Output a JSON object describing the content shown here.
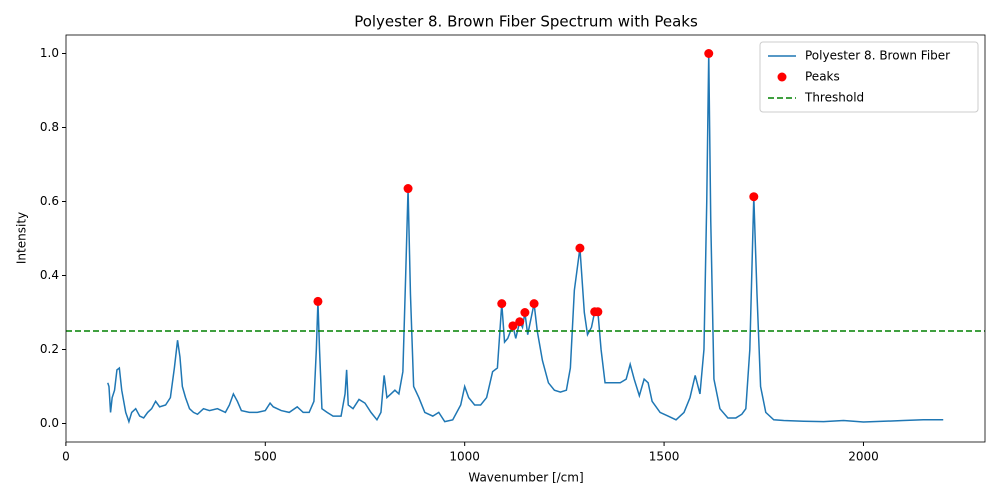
{
  "chart_data": {
    "type": "line",
    "title": "Polyester 8. Brown Fiber Spectrum with Peaks",
    "xlabel": "Wavenumber [/cm]",
    "ylabel": "Intensity",
    "xlim": [
      0.25,
      2304.75
    ],
    "ylim": [
      -0.05,
      1.05
    ],
    "xticks": [
      0,
      500,
      1000,
      1500,
      2000
    ],
    "yticks": [
      {
        "value": 0,
        "label": "0.0"
      },
      0.2,
      0.4,
      0.6,
      0.8,
      {
        "value": 1,
        "label": "1.0"
      }
    ],
    "grid": false,
    "legend": "upper right",
    "series": [
      {
        "name": "Polyester 8. Brown Fiber",
        "type": "line",
        "color": "#1f77b4",
        "x": [
          105,
          108,
          112,
          116,
          122,
          128,
          134,
          140,
          150,
          158,
          165,
          175,
          185,
          195,
          205,
          215,
          225,
          235,
          250,
          262,
          272,
          280,
          286,
          292,
          300,
          310,
          320,
          330,
          345,
          360,
          380,
          400,
          410,
          420,
          430,
          440,
          460,
          480,
          500,
          512,
          520,
          540,
          560,
          580,
          595,
          610,
          622,
          628,
          632,
          636,
          642,
          655,
          670,
          690,
          700,
          704,
          708,
          720,
          735,
          750,
          765,
          780,
          790,
          798,
          805,
          815,
          825,
          835,
          845,
          852,
          858,
          864,
          872,
          885,
          900,
          920,
          935,
          950,
          970,
          990,
          1000,
          1010,
          1025,
          1040,
          1055,
          1070,
          1082,
          1093,
          1100,
          1108,
          1115,
          1121,
          1128,
          1138,
          1145,
          1151,
          1158,
          1174,
          1182,
          1195,
          1210,
          1225,
          1240,
          1255,
          1265,
          1275,
          1289,
          1300,
          1308,
          1318,
          1326,
          1334,
          1342,
          1352,
          1370,
          1390,
          1405,
          1415,
          1425,
          1438,
          1450,
          1460,
          1470,
          1490,
          1510,
          1530,
          1550,
          1565,
          1578,
          1590,
          1600,
          1607,
          1612,
          1617,
          1625,
          1640,
          1660,
          1680,
          1695,
          1705,
          1715,
          1725,
          1733,
          1742,
          1755,
          1775,
          1800,
          1850,
          1900,
          1950,
          2000,
          2050,
          2100,
          2150,
          2200
        ],
        "values": [
          0.11,
          0.1,
          0.03,
          0.07,
          0.09,
          0.145,
          0.15,
          0.09,
          0.03,
          0.005,
          0.03,
          0.04,
          0.02,
          0.015,
          0.03,
          0.04,
          0.06,
          0.045,
          0.05,
          0.07,
          0.15,
          0.225,
          0.18,
          0.1,
          0.07,
          0.04,
          0.03,
          0.025,
          0.04,
          0.035,
          0.04,
          0.03,
          0.05,
          0.08,
          0.06,
          0.035,
          0.03,
          0.03,
          0.035,
          0.055,
          0.045,
          0.035,
          0.03,
          0.045,
          0.03,
          0.03,
          0.06,
          0.2,
          0.33,
          0.2,
          0.04,
          0.03,
          0.02,
          0.02,
          0.08,
          0.145,
          0.05,
          0.04,
          0.065,
          0.055,
          0.03,
          0.01,
          0.03,
          0.13,
          0.07,
          0.08,
          0.09,
          0.08,
          0.14,
          0.4,
          0.635,
          0.35,
          0.1,
          0.07,
          0.03,
          0.02,
          0.03,
          0.005,
          0.01,
          0.05,
          0.1,
          0.07,
          0.05,
          0.05,
          0.07,
          0.14,
          0.15,
          0.324,
          0.22,
          0.23,
          0.25,
          0.264,
          0.23,
          0.275,
          0.26,
          0.3,
          0.24,
          0.324,
          0.25,
          0.17,
          0.11,
          0.09,
          0.085,
          0.09,
          0.15,
          0.36,
          0.474,
          0.3,
          0.24,
          0.26,
          0.302,
          0.302,
          0.2,
          0.11,
          0.11,
          0.11,
          0.12,
          0.16,
          0.12,
          0.075,
          0.12,
          0.11,
          0.06,
          0.03,
          0.02,
          0.01,
          0.03,
          0.07,
          0.13,
          0.08,
          0.2,
          0.6,
          1.0,
          0.55,
          0.12,
          0.04,
          0.015,
          0.015,
          0.025,
          0.04,
          0.2,
          0.613,
          0.35,
          0.1,
          0.03,
          0.01,
          0.008,
          0.006,
          0.005,
          0.008,
          0.004,
          0.006,
          0.008,
          0.01,
          0.01
        ]
      },
      {
        "name": "Peaks",
        "type": "scatter",
        "color": "red",
        "x": [
          632,
          858,
          1093,
          1121,
          1138,
          1151,
          1174,
          1289,
          1326,
          1334,
          1612,
          1725
        ],
        "values": [
          0.33,
          0.635,
          0.324,
          0.264,
          0.275,
          0.3,
          0.324,
          0.474,
          0.302,
          0.302,
          1.0,
          0.613
        ]
      },
      {
        "name": "Threshold",
        "type": "hline",
        "color": "green",
        "linestyle": "dashed",
        "values": [
          0.25
        ]
      }
    ]
  }
}
